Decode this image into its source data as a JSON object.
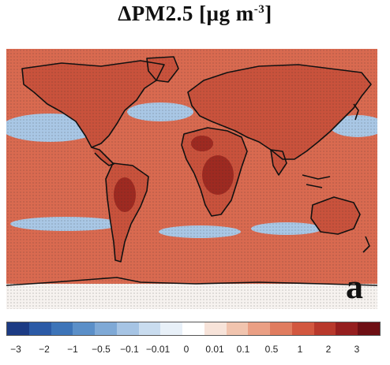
{
  "title": {
    "prefix": "ΔPM2.5 [μg m",
    "superscript": "-3",
    "suffix": "]"
  },
  "panel_label": "a",
  "colorbar": {
    "colors": [
      "#1c3b84",
      "#2b5aa6",
      "#3d74b8",
      "#5b8fc8",
      "#7fa9d6",
      "#a6c4e4",
      "#c9dcef",
      "#e8f0f8",
      "#ffffff",
      "#f7e3d9",
      "#f1c4ae",
      "#ea9f84",
      "#e07c5f",
      "#d2573f",
      "#b8382b",
      "#951e1e",
      "#6e0f14"
    ],
    "labels": [
      "−3",
      "−2",
      "−1",
      "−0.5",
      "−0.1",
      "−0.01",
      "0",
      "0.01",
      "0.1",
      "0.5",
      "1",
      "2",
      "3"
    ]
  },
  "map": {
    "ocean_color": "#d96a50",
    "land_color": "#c9523c",
    "hotspot_color": "#9e2a21",
    "negative_color": "#a9c7e5",
    "coast_color": "#111111"
  }
}
